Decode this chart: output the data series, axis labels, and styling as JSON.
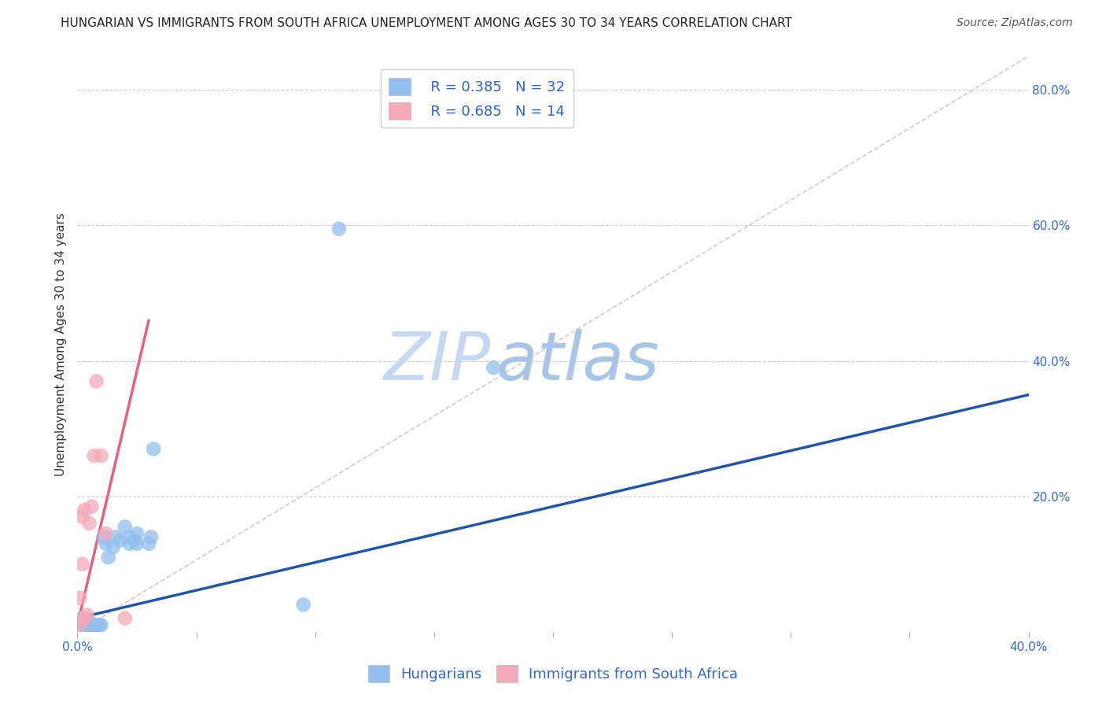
{
  "title": "HUNGARIAN VS IMMIGRANTS FROM SOUTH AFRICA UNEMPLOYMENT AMONG AGES 30 TO 34 YEARS CORRELATION CHART",
  "source": "Source: ZipAtlas.com",
  "ylabel": "Unemployment Among Ages 30 to 34 years",
  "xlim": [
    0.0,
    0.4
  ],
  "ylim": [
    0.0,
    0.85
  ],
  "xticks": [
    0.0,
    0.05,
    0.1,
    0.15,
    0.2,
    0.25,
    0.3,
    0.35,
    0.4
  ],
  "xtick_labels": [
    "0.0%",
    "",
    "",
    "",
    "",
    "",
    "",
    "",
    "40.0%"
  ],
  "yticks_right": [
    0.0,
    0.2,
    0.4,
    0.6,
    0.8
  ],
  "ytick_labels_right": [
    "",
    "20.0%",
    "40.0%",
    "60.0%",
    "80.0%"
  ],
  "blue_scatter_x": [
    0.001,
    0.001,
    0.002,
    0.002,
    0.003,
    0.003,
    0.004,
    0.005,
    0.005,
    0.006,
    0.007,
    0.008,
    0.009,
    0.01,
    0.011,
    0.012,
    0.013,
    0.015,
    0.016,
    0.018,
    0.02,
    0.022,
    0.022,
    0.024,
    0.025,
    0.025,
    0.03,
    0.031,
    0.032,
    0.095,
    0.11,
    0.175
  ],
  "blue_scatter_y": [
    0.01,
    0.015,
    0.01,
    0.02,
    0.015,
    0.01,
    0.01,
    0.01,
    0.015,
    0.01,
    0.01,
    0.01,
    0.01,
    0.01,
    0.14,
    0.13,
    0.11,
    0.125,
    0.14,
    0.135,
    0.155,
    0.13,
    0.14,
    0.135,
    0.13,
    0.145,
    0.13,
    0.14,
    0.27,
    0.04,
    0.595,
    0.39
  ],
  "pink_scatter_x": [
    0.001,
    0.001,
    0.002,
    0.002,
    0.003,
    0.003,
    0.004,
    0.005,
    0.006,
    0.007,
    0.008,
    0.01,
    0.012,
    0.02
  ],
  "pink_scatter_y": [
    0.01,
    0.05,
    0.1,
    0.17,
    0.18,
    0.02,
    0.025,
    0.16,
    0.185,
    0.26,
    0.37,
    0.26,
    0.145,
    0.02
  ],
  "blue_line_x": [
    0.0,
    0.4
  ],
  "blue_line_y": [
    0.02,
    0.35
  ],
  "pink_line_x": [
    0.0,
    0.03
  ],
  "pink_line_y": [
    0.01,
    0.46
  ],
  "diag_line_x": [
    0.0,
    0.4
  ],
  "diag_line_y": [
    0.0,
    0.85
  ],
  "blue_color": "#92BFED",
  "pink_color": "#F4A8B8",
  "blue_line_color": "#2255AA",
  "pink_line_color": "#E8607A",
  "diag_color": "#CCCCCC",
  "watermark_zip": "ZIP",
  "watermark_atlas": "atlas",
  "legend_r1": "R = 0.385",
  "legend_n1": "N = 32",
  "legend_r2": "R = 0.685",
  "legend_n2": "N = 14",
  "tick_color": "#3366CC",
  "label_color": "#333333",
  "background_color": "#FFFFFF",
  "title_fontsize": 11,
  "axis_label_fontsize": 11,
  "tick_fontsize": 11,
  "legend_fontsize": 13,
  "source_fontsize": 10,
  "bottom_legend_label1": "Hungarians",
  "bottom_legend_label2": "Immigrants from South Africa"
}
